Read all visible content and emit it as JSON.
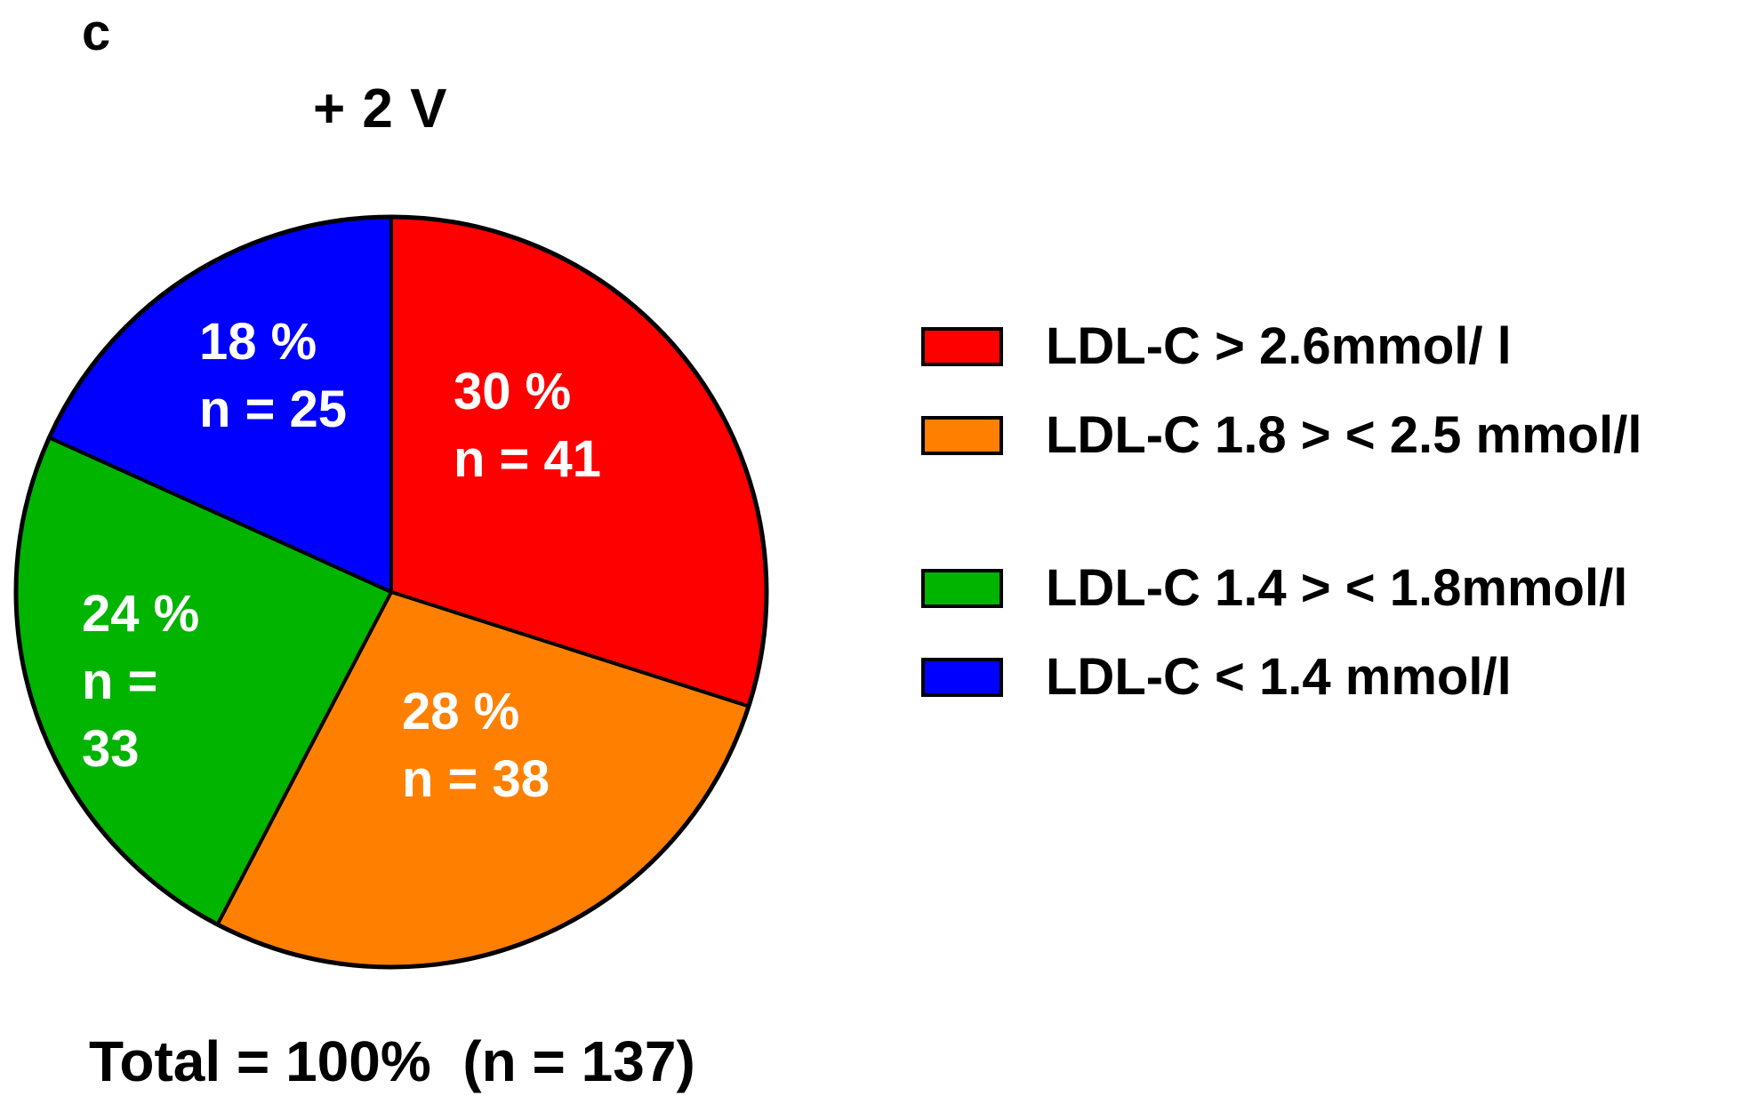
{
  "panel_letter": "c",
  "chart_data": {
    "type": "pie",
    "title": "+ 2 V",
    "slices": [
      {
        "name": "LDL-C > 2.6mmol/ l",
        "percent_label": "30 %",
        "n_label": "n = 41",
        "value": 41,
        "percent": 30,
        "color": "#ff0000"
      },
      {
        "name": "LDL-C 1.8 > < 2.5 mmol/l",
        "percent_label": "28 %",
        "n_label": "n = 38",
        "value": 38,
        "percent": 28,
        "color": "#ff8000"
      },
      {
        "name": "LDL-C 1.4 > < 1.8mmol/l",
        "percent_label": "24 %",
        "n_label_lines": [
          "n =",
          "33"
        ],
        "value": 33,
        "percent": 24,
        "color": "#00b400"
      },
      {
        "name": "LDL-C < 1.4 mmol/l",
        "percent_label": "18 %",
        "n_label": "n = 25",
        "value": 25,
        "percent": 18,
        "color": "#0000ff"
      }
    ],
    "start_angle_deg": 0,
    "direction": "clockwise",
    "legend_position": "right",
    "footer": "Total = 100%  (n = 137)"
  }
}
